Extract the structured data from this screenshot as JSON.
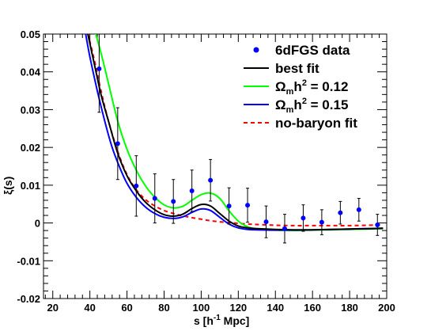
{
  "chart_data": {
    "type": "scatter",
    "xlabel": "s [h",
    "xlabel_sup": "-1",
    "xlabel_tail": " Mpc]",
    "ylabel": "ξ(s)",
    "xlim": [
      15,
      200
    ],
    "ylim": [
      -0.02,
      0.05
    ],
    "x_ticks": [
      20,
      40,
      60,
      80,
      100,
      120,
      140,
      160,
      180,
      200
    ],
    "x_tick_labels": [
      "20",
      "40",
      "60",
      "80",
      "100",
      "120",
      "140",
      "160",
      "180",
      "200"
    ],
    "y_ticks": [
      -0.02,
      -0.01,
      0,
      0.01,
      0.02,
      0.03,
      0.04,
      0.05
    ],
    "y_tick_labels": [
      "-0.02",
      "-0.01",
      "0",
      "0.01",
      "0.02",
      "0.03",
      "0.04",
      "0.05"
    ],
    "grid": false,
    "legend_position": "top-right",
    "points": {
      "name": "6dFGS data",
      "color": "#0000ff",
      "x": [
        45,
        55,
        65,
        75,
        85,
        95,
        105,
        115,
        125,
        135,
        145,
        155,
        165,
        175,
        185,
        195
      ],
      "y": [
        0.0408,
        0.021,
        0.0098,
        0.0065,
        0.0057,
        0.0085,
        0.0113,
        0.0045,
        0.0047,
        0.0003,
        -0.0015,
        0.0013,
        0.0002,
        0.0027,
        0.0035,
        -0.0005
      ],
      "err": [
        0.0115,
        0.0095,
        0.008,
        0.0065,
        0.0058,
        0.0055,
        0.0055,
        0.0048,
        0.0045,
        0.0042,
        0.0038,
        0.0035,
        0.0033,
        0.003,
        0.003,
        0.0028
      ]
    },
    "series": [
      {
        "name": "best fit",
        "color": "#000000",
        "dashed": false,
        "x": [
          38,
          42,
          46,
          50,
          55,
          60,
          65,
          70,
          75,
          80,
          85,
          90,
          95,
          100,
          105,
          110,
          115,
          120,
          125,
          130,
          140,
          150,
          160,
          170,
          180,
          190,
          198
        ],
        "y": [
          0.052,
          0.043,
          0.034,
          0.027,
          0.0185,
          0.0125,
          0.0085,
          0.0055,
          0.0035,
          0.0022,
          0.0018,
          0.0023,
          0.0038,
          0.0049,
          0.0045,
          0.0025,
          0.0005,
          -0.0008,
          -0.0013,
          -0.0015,
          -0.0017,
          -0.0018,
          -0.0018,
          -0.0017,
          -0.0016,
          -0.0015,
          -0.0014
        ]
      },
      {
        "name": "Ωmh² = 0.12",
        "color": "#00ff00",
        "dashed": false,
        "x": [
          42,
          46,
          50,
          55,
          60,
          65,
          70,
          75,
          80,
          85,
          90,
          95,
          100,
          105,
          110,
          115,
          120,
          125,
          130,
          140,
          150,
          160,
          170,
          180,
          190,
          198
        ],
        "y": [
          0.052,
          0.045,
          0.037,
          0.027,
          0.0195,
          0.014,
          0.0098,
          0.0068,
          0.0048,
          0.004,
          0.0044,
          0.006,
          0.0075,
          0.0079,
          0.0065,
          0.0032,
          0.0005,
          -0.001,
          -0.0016,
          -0.0019,
          -0.002,
          -0.0019,
          -0.0018,
          -0.0017,
          -0.0016,
          -0.0015
        ]
      },
      {
        "name": "Ωmh² = 0.15",
        "color": "#0000ff",
        "dashed": false,
        "x": [
          37,
          40,
          44,
          48,
          52,
          56,
          60,
          65,
          70,
          75,
          80,
          85,
          90,
          95,
          100,
          105,
          110,
          115,
          120,
          125,
          130,
          140,
          150,
          160,
          170,
          180,
          190,
          198
        ],
        "y": [
          0.052,
          0.044,
          0.035,
          0.027,
          0.02,
          0.0148,
          0.0105,
          0.0068,
          0.0042,
          0.0025,
          0.0015,
          0.0012,
          0.0016,
          0.0028,
          0.0037,
          0.0033,
          0.0015,
          -0.0003,
          -0.0013,
          -0.0017,
          -0.0018,
          -0.0019,
          -0.0019,
          -0.0018,
          -0.0017,
          -0.0016,
          -0.0015,
          -0.0014
        ]
      },
      {
        "name": "no-baryon fit",
        "color": "#ff0000",
        "dashed": true,
        "x": [
          38,
          42,
          46,
          50,
          55,
          60,
          65,
          70,
          75,
          80,
          85,
          90,
          95,
          100,
          105,
          110,
          115,
          120,
          125,
          130,
          140,
          150,
          160,
          170,
          180,
          190,
          198
        ],
        "y": [
          0.052,
          0.044,
          0.035,
          0.027,
          0.019,
          0.0128,
          0.0088,
          0.0062,
          0.0045,
          0.0033,
          0.0025,
          0.0019,
          0.0014,
          0.001,
          0.0006,
          0.0003,
          0.0001,
          -0.0001,
          -0.0003,
          -0.0004,
          -0.0006,
          -0.0007,
          -0.0007,
          -0.0007,
          -0.0007,
          -0.0006,
          -0.0005
        ]
      }
    ],
    "legend": [
      {
        "kind": "marker",
        "label": "6dFGS data",
        "color": "#0000ff"
      },
      {
        "kind": "line",
        "label": "best fit",
        "color": "#000000",
        "dashed": false
      },
      {
        "kind": "line",
        "label_main": "Ω",
        "label_sub": "m",
        "label_mid": "h",
        "label_sup": "2",
        "label_tail": " = 0.12",
        "color": "#00ff00",
        "dashed": false
      },
      {
        "kind": "line",
        "label_main": "Ω",
        "label_sub": "m",
        "label_mid": "h",
        "label_sup": "2",
        "label_tail": " = 0.15",
        "color": "#0000ff",
        "dashed": false
      },
      {
        "kind": "line",
        "label": "no-baryon fit",
        "color": "#ff0000",
        "dashed": true
      }
    ]
  }
}
